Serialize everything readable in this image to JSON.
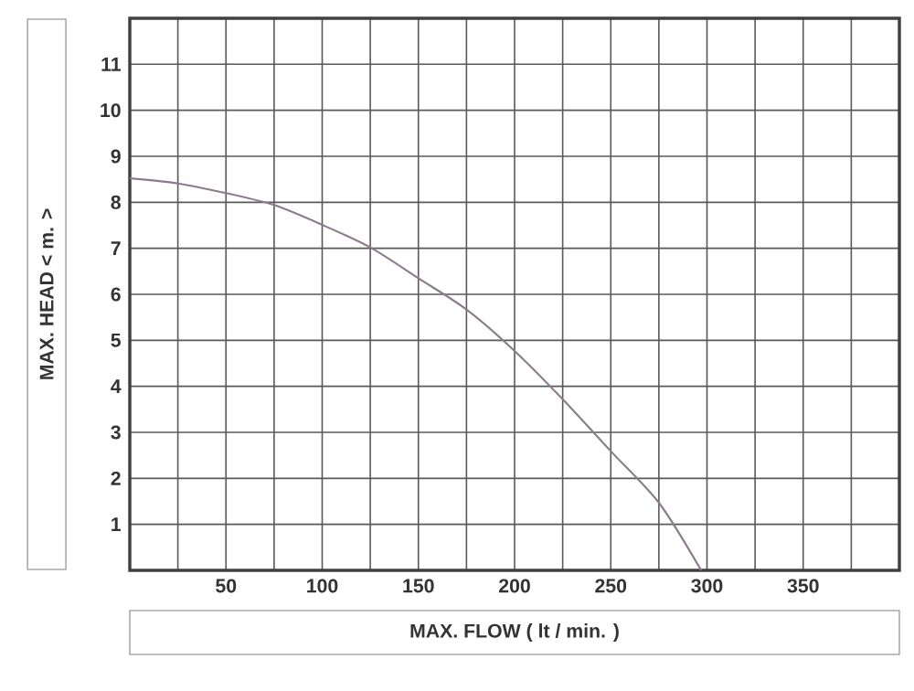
{
  "chart_data": {
    "type": "line",
    "xlabel": "MAX. FLOW ( lt / min. )",
    "ylabel": "MAX. HEAD < m. >",
    "x": [
      0,
      25,
      50,
      75,
      100,
      125,
      150,
      175,
      200,
      225,
      250,
      275,
      297
    ],
    "series": [
      {
        "color": "#8c7b8c",
        "values": [
          8.52,
          8.41,
          8.2,
          7.94,
          7.51,
          7.02,
          6.35,
          5.67,
          4.77,
          3.72,
          2.59,
          1.47,
          0
        ]
      }
    ],
    "xlim": [
      0,
      400
    ],
    "ylim": [
      0,
      12
    ],
    "xticks": [
      {
        "value": 25,
        "label": null
      },
      50,
      {
        "value": 75,
        "label": null
      },
      100,
      {
        "value": 125,
        "label": null
      },
      150,
      {
        "value": 175,
        "label": null
      },
      200,
      {
        "value": 225,
        "label": null
      },
      250,
      {
        "value": 275,
        "label": null
      },
      300,
      {
        "value": 325,
        "label": null
      },
      350,
      {
        "value": 375,
        "label": null
      }
    ],
    "yticks": [
      1,
      2,
      3,
      4,
      5,
      6,
      7,
      8,
      9,
      10,
      11
    ],
    "grid": true,
    "marker": "none",
    "line_style": "solid"
  }
}
